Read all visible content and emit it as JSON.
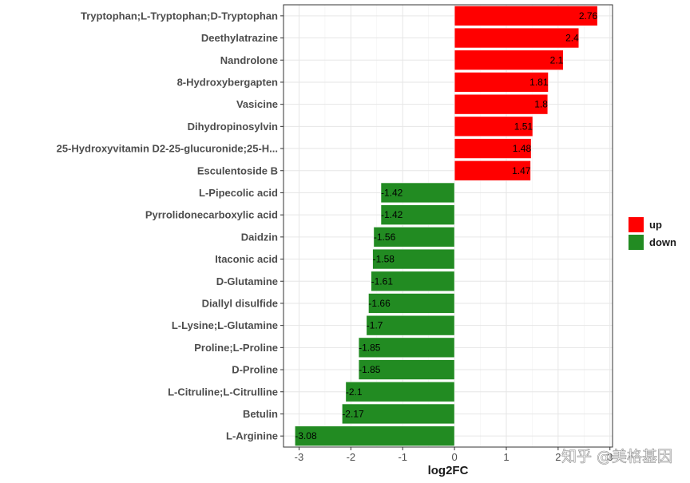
{
  "chart_data": {
    "type": "bar",
    "orientation": "horizontal",
    "categories": [
      "Tryptophan;L-Tryptophan;D-Tryptophan",
      "Deethylatrazine",
      "Nandrolone",
      "8-Hydroxybergapten",
      "Vasicine",
      "Dihydropinosylvin",
      "25-Hydroxyvitamin D2-25-glucuronide;25-H...",
      "Esculentoside B",
      "L-Pipecolic acid",
      "Pyrrolidonecarboxylic acid",
      "Daidzin",
      "Itaconic acid",
      "D-Glutamine",
      "Diallyl disulfide",
      "L-Lysine;L-Glutamine",
      "Proline;L-Proline",
      "D-Proline",
      "L-Citruline;L-Citrulline",
      "Betulin",
      "L-Arginine"
    ],
    "values": [
      2.76,
      2.4,
      2.1,
      1.81,
      1.8,
      1.51,
      1.48,
      1.47,
      -1.42,
      -1.42,
      -1.56,
      -1.58,
      -1.61,
      -1.66,
      -1.7,
      -1.85,
      -1.85,
      -2.1,
      -2.17,
      -3.08
    ],
    "data_labels": [
      "2.76",
      "2.4",
      "2.1",
      "1.81",
      "1.8",
      "1.51",
      "1.48",
      "1.47",
      "-1.42",
      "-1.42",
      "-1.56",
      "-1.58",
      "-1.61",
      "-1.66",
      "-1.7",
      "-1.85",
      "-1.85",
      "-2.1",
      "-2.17",
      "-3.08"
    ],
    "groups": [
      "up",
      "up",
      "up",
      "up",
      "up",
      "up",
      "up",
      "up",
      "down",
      "down",
      "down",
      "down",
      "down",
      "down",
      "down",
      "down",
      "down",
      "down",
      "down",
      "down"
    ],
    "xlabel": "log2FC",
    "ylabel": "",
    "xlim": [
      -3.3,
      3.05
    ],
    "x_ticks": [
      -3,
      -2,
      -1,
      0,
      1,
      2,
      3
    ],
    "x_tick_labels": [
      "-3",
      "-2",
      "-1",
      "0",
      "1",
      "2",
      "3"
    ],
    "grid": true,
    "legend": {
      "position": "right",
      "entries": [
        {
          "label": "up",
          "color": "#ff0000"
        },
        {
          "label": "down",
          "color": "#228b22"
        }
      ]
    },
    "colors": {
      "up": "#ff0000",
      "down": "#228b22"
    }
  },
  "watermark": "知乎 @美格基因"
}
